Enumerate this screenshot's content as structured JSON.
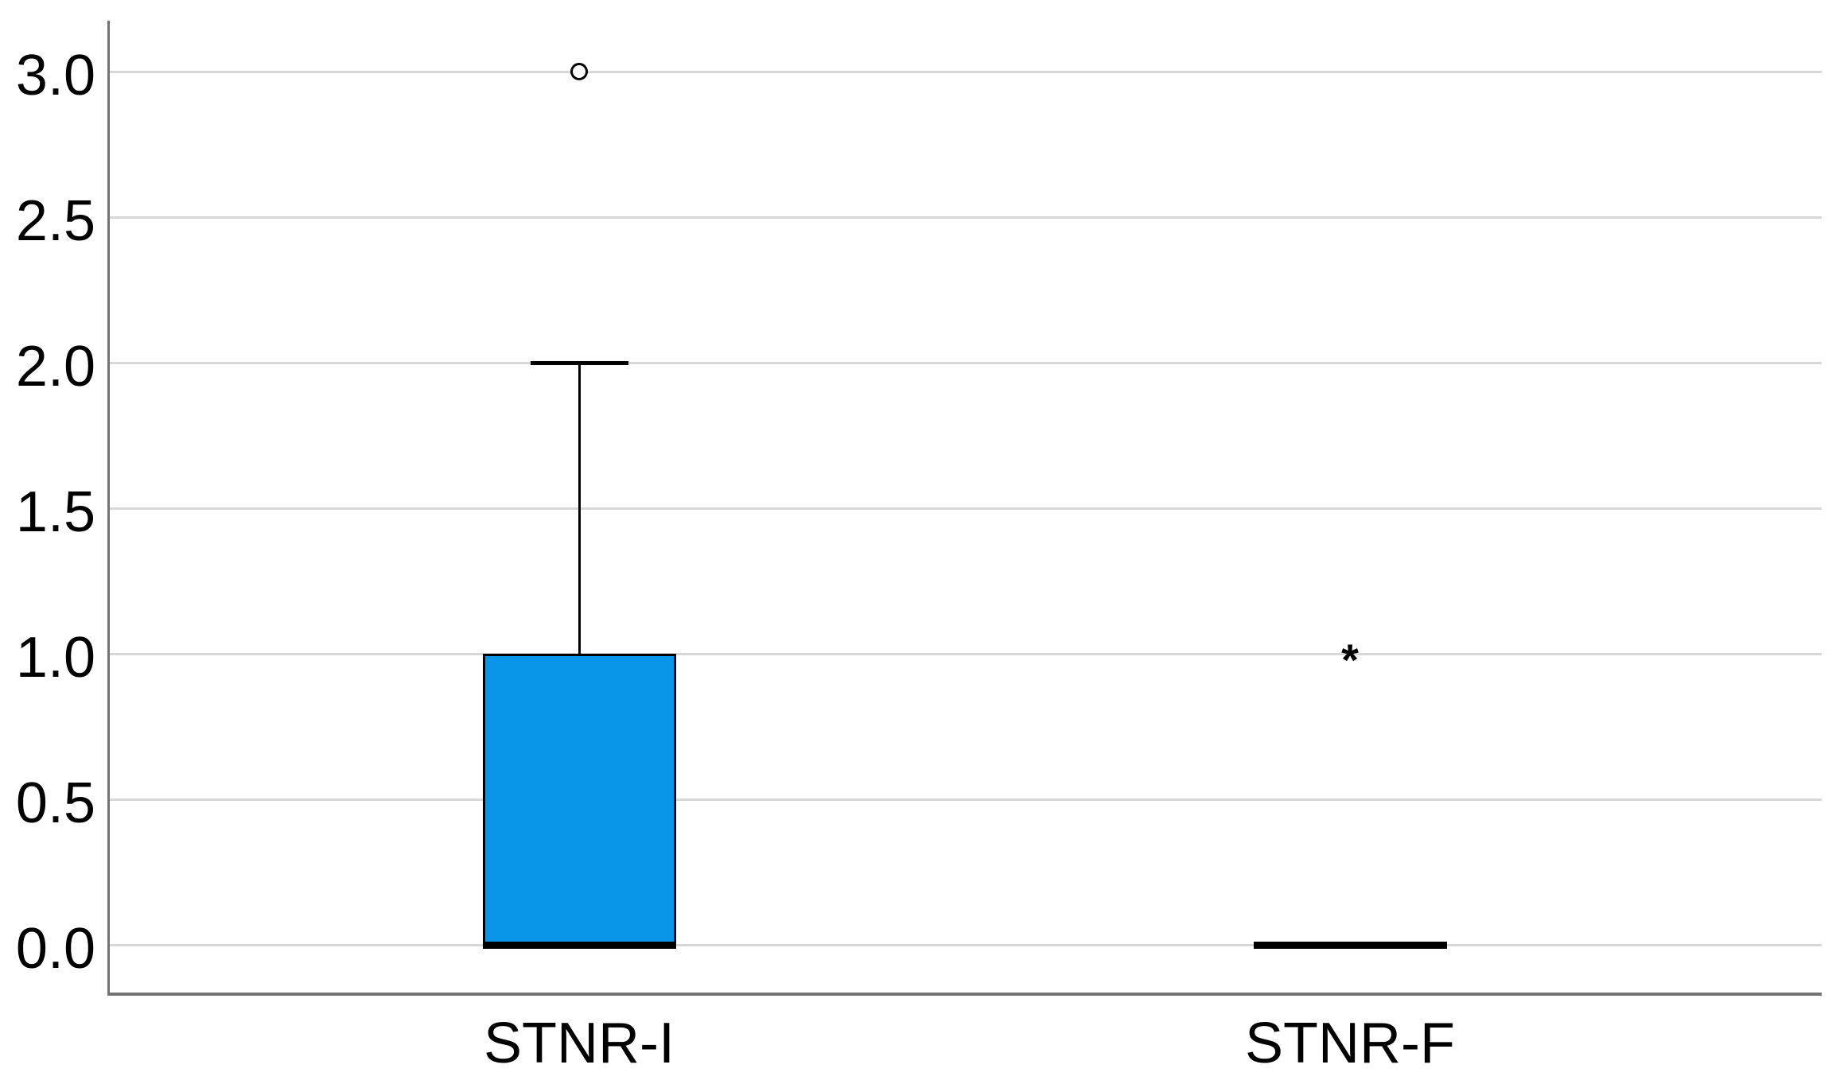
{
  "chart_data": {
    "type": "boxplot",
    "orientation": "vertical",
    "title": "",
    "xlabel": "",
    "ylabel": "",
    "grid": true,
    "legend": "none",
    "categories": [
      "STNR-I",
      "STNR-F"
    ],
    "y_axis": {
      "tick_labels": [
        "0.0",
        "0.5",
        "1.0",
        "1.5",
        "2.0",
        "2.5",
        "3.0"
      ],
      "tick_values": [
        0.0,
        0.5,
        1.0,
        1.5,
        2.0,
        2.5,
        3.0
      ],
      "range_shown": [
        -0.17,
        3.17
      ]
    },
    "series": [
      {
        "category": "STNR-I",
        "whisker_low": 0.0,
        "q1": 0.0,
        "median": 0.0,
        "q3": 1.0,
        "whisker_high": 2.0,
        "outliers": [
          {
            "value": 3.0,
            "marker": "circle"
          }
        ]
      },
      {
        "category": "STNR-F",
        "whisker_low": 0.0,
        "q1": 0.0,
        "median": 0.0,
        "q3": 0.0,
        "whisker_high": 0.0,
        "outliers": [
          {
            "value": 1.0,
            "marker": "asterisk"
          }
        ]
      }
    ],
    "outlier_marker_glyph": "*",
    "colors": {
      "box_fill": "#0995E8",
      "box_border": "#000000",
      "median": "#000000",
      "whisker": "#000000",
      "gridline": "#D8D8D8",
      "axis_line": "#737373",
      "text": "#000000",
      "background": "#FFFFFF"
    }
  }
}
